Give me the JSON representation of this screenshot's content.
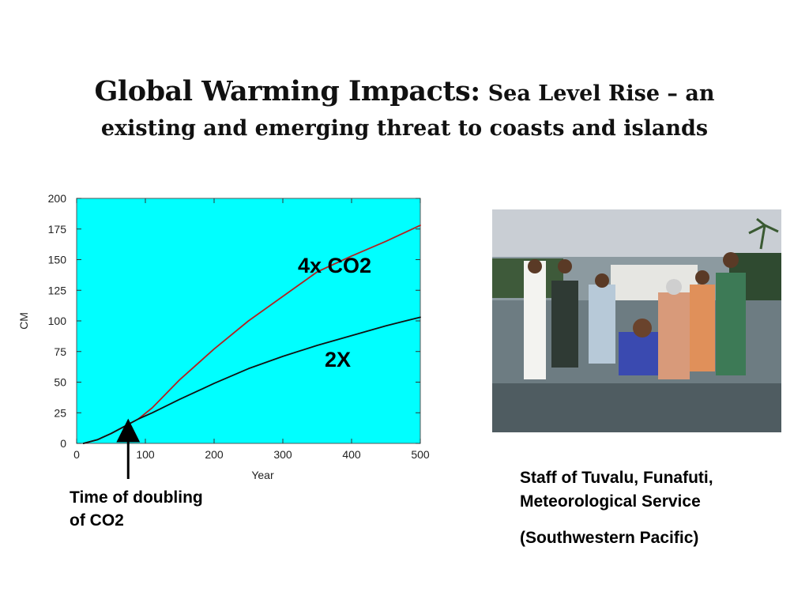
{
  "slide": {
    "title_main": "Global Warming Impacts:",
    "title_sub": "Sea Level Rise – an",
    "title_line2": "existing and emerging threat to coasts and islands"
  },
  "chart_data": {
    "type": "line",
    "xlabel": "Year",
    "ylabel": "CM",
    "xlim": [
      0,
      500
    ],
    "ylim": [
      0,
      200
    ],
    "x_ticks": [
      0,
      100,
      200,
      300,
      400,
      500
    ],
    "y_ticks": [
      0,
      25,
      50,
      75,
      100,
      125,
      150,
      175,
      200
    ],
    "background_color": "#00ffff",
    "grid": false,
    "series": [
      {
        "name": "4x CO2",
        "color": "#b22222",
        "x": [
          10,
          30,
          50,
          70,
          90,
          110,
          150,
          200,
          250,
          300,
          350,
          400,
          450,
          500
        ],
        "y": [
          0,
          3,
          8,
          14,
          20,
          29,
          52,
          77,
          100,
          120,
          140,
          153,
          165,
          178
        ]
      },
      {
        "name": "2X",
        "color": "#111111",
        "x": [
          10,
          30,
          50,
          70,
          90,
          110,
          150,
          200,
          250,
          300,
          350,
          400,
          450,
          500
        ],
        "y": [
          0,
          3,
          8,
          14,
          20,
          25,
          36,
          49,
          61,
          71,
          80,
          88,
          96,
          103
        ]
      }
    ],
    "annotations": [
      {
        "text_line1": "Time of doubling",
        "text_line2": "of CO2",
        "x": 75,
        "y": 17
      }
    ]
  },
  "photo": {
    "caption_line1": "Staff of Tuvalu, Funafuti,",
    "caption_line2": "Meteorological Service",
    "caption_line3": "(Southwestern Pacific)"
  }
}
